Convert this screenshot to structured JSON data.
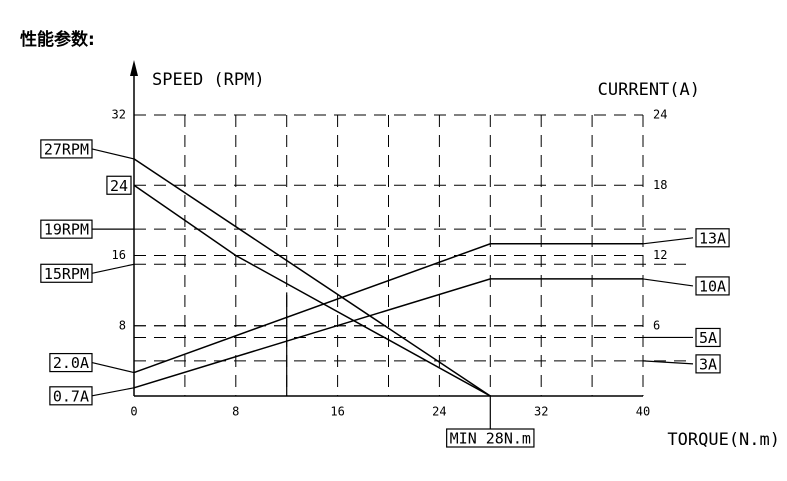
{
  "chart_data": {
    "type": "line",
    "title": "性能参数:",
    "y_label": "SPEED (RPM)",
    "y2_label": "CURRENT(A)",
    "x_label": "TORQUE(N.m)",
    "xlim": [
      0,
      40
    ],
    "xticks": [
      0,
      8,
      16,
      24,
      32,
      40
    ],
    "x_grid": [
      4,
      8,
      12,
      16,
      20,
      24,
      28,
      32,
      36,
      40
    ],
    "ylim": [
      0,
      32
    ],
    "yticks": [
      8,
      16,
      32
    ],
    "y2lim": [
      0,
      24
    ],
    "y2ticks": [
      6,
      12,
      18,
      24
    ],
    "grid": true,
    "color": "#000000",
    "series": [
      {
        "x": [
          0,
          28
        ],
        "values": [
          27,
          0
        ],
        "axis": "y"
      },
      {
        "x": [
          0,
          8,
          28
        ],
        "values": [
          24,
          16,
          0
        ],
        "axis": "y"
      },
      {
        "x": [
          0,
          28,
          40
        ],
        "values": [
          2.0,
          13,
          13
        ],
        "axis": "y2"
      },
      {
        "x": [
          0,
          28,
          40
        ],
        "values": [
          0.7,
          10,
          10
        ],
        "axis": "y2"
      }
    ],
    "marker_line": {
      "x": 12,
      "y": 11.8
    },
    "left_annotations": [
      {
        "label": "27RPM",
        "value": 27,
        "axis": "y"
      },
      {
        "label": "24",
        "value": 24,
        "axis": "y"
      },
      {
        "label": "19RPM",
        "value": 19,
        "axis": "y"
      },
      {
        "label": "15RPM",
        "value": 15,
        "axis": "y"
      },
      {
        "label": "2.0A",
        "value": 2.0,
        "axis": "y2"
      },
      {
        "label": "0.7A",
        "value": 0.7,
        "axis": "y2"
      }
    ],
    "right_annotations": [
      {
        "label": "13A",
        "value": 13,
        "axis": "y2"
      },
      {
        "label": "10A",
        "value": 10,
        "axis": "y2"
      },
      {
        "label": "5A",
        "value": 5,
        "axis": "y2"
      },
      {
        "label": "3A",
        "value": 3,
        "axis": "y2"
      }
    ],
    "reference_lines": [
      {
        "value": 19,
        "axis": "y"
      },
      {
        "value": 15,
        "axis": "y"
      },
      {
        "value": 5,
        "axis": "y2"
      },
      {
        "value": 3,
        "axis": "y2"
      }
    ],
    "bottom_annotation": {
      "label": "MIN 28N.m",
      "value": 28
    }
  }
}
